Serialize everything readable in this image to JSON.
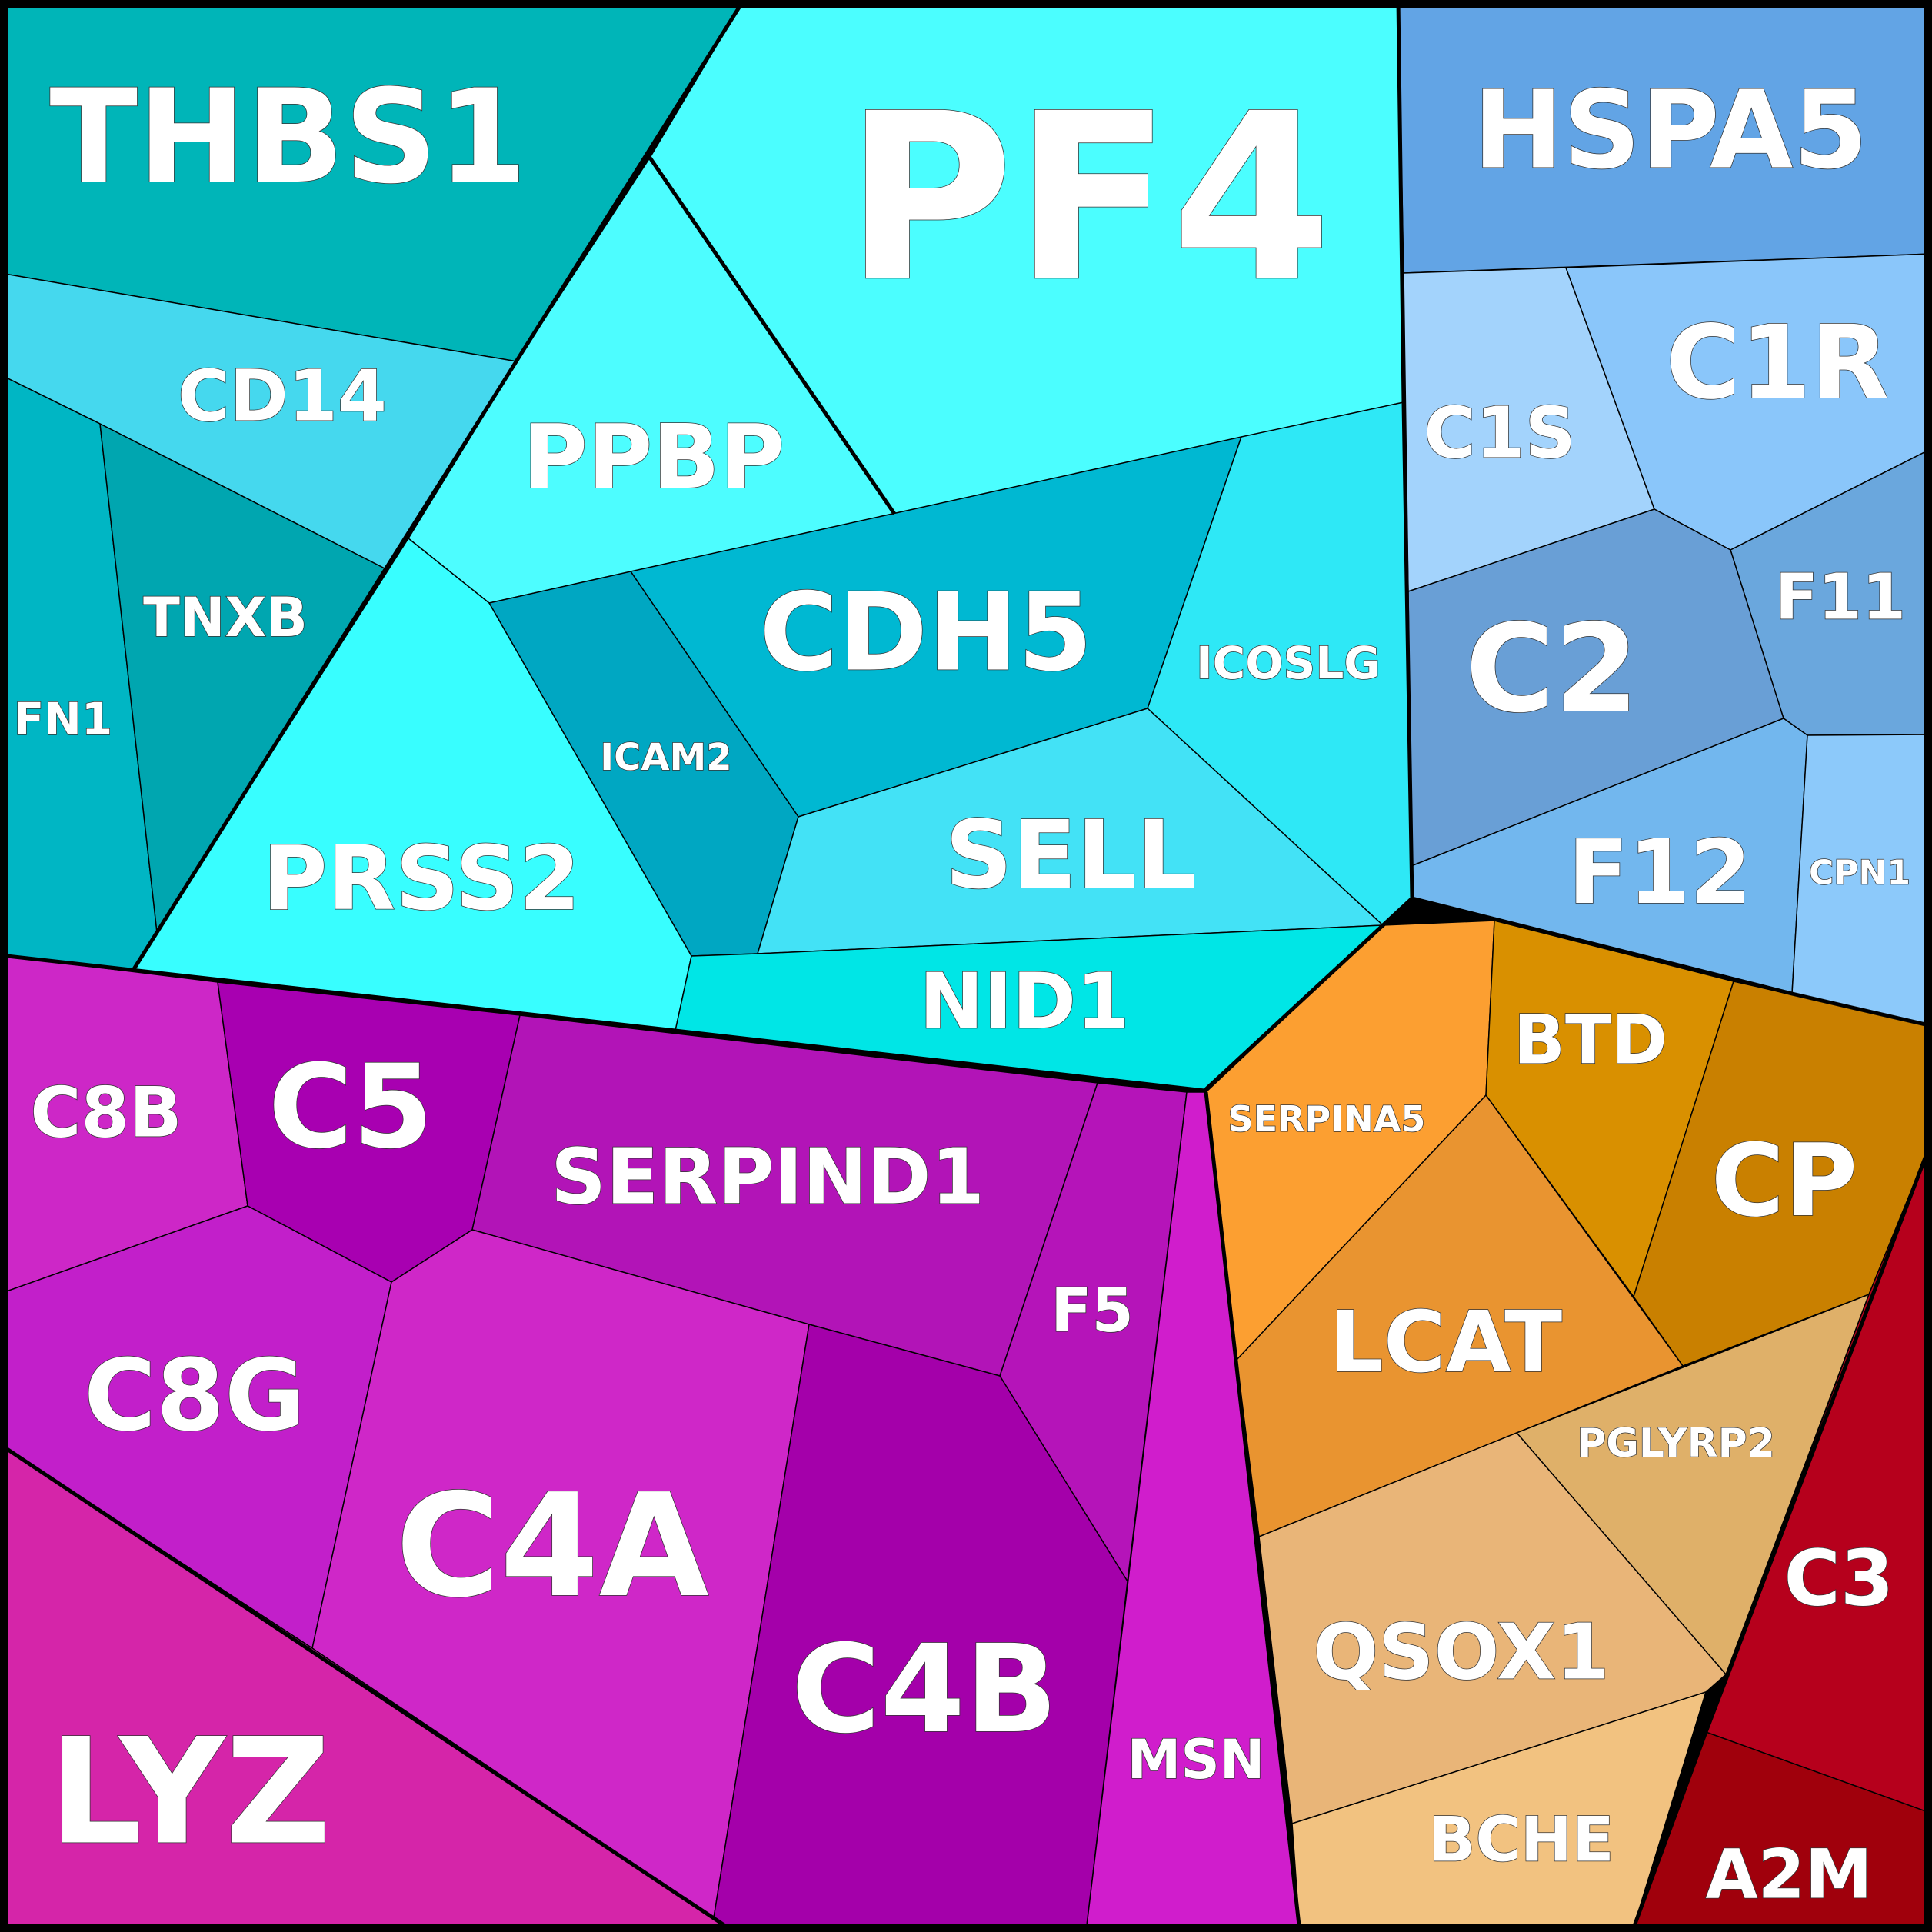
{
  "colors": {
    "cyan_group": [
      "#00b5b8",
      "#45d8ee",
      "#00b6c4",
      "#00a6b0",
      "#4dfdff",
      "#4bfeff",
      "#38feff",
      "#00b8d2",
      "#00a7c2",
      "#2ee8f6",
      "#43e2f6",
      "#00e6e6"
    ],
    "blue_group": [
      "#62a4e5",
      "#a3d3fc",
      "#8ac6fa",
      "#6aa7dd",
      "#699fd6",
      "#72b7ee",
      "#8cc9fa"
    ],
    "magenta_group": [
      "#cd27c7",
      "#a800b1",
      "#b214b7",
      "#c21fca",
      "#cf27c8",
      "#a400aa",
      "#b514b9",
      "#d01dcc",
      "#d525a9"
    ],
    "orange_group": [
      "#fc9f31",
      "#d99000",
      "#c98000",
      "#e99430",
      "#dfb069",
      "#e9b578",
      "#f2c280"
    ],
    "red_group": [
      "#b6001c",
      "#a0000c"
    ]
  },
  "cells": [
    {
      "id": "THBS1",
      "label": "THBS1",
      "group": "cyan",
      "color": "#00b5b8"
    },
    {
      "id": "PF4",
      "label": "PF4",
      "group": "cyan",
      "color": "#4bfeff"
    },
    {
      "id": "CD14",
      "label": "CD14",
      "group": "cyan",
      "color": "#45d8ee"
    },
    {
      "id": "PPBP",
      "label": "PPBP",
      "group": "cyan",
      "color": "#4dfdff"
    },
    {
      "id": "FN1",
      "label": "FN1",
      "group": "cyan",
      "color": "#00b6c4"
    },
    {
      "id": "TNXB",
      "label": "TNXB",
      "group": "cyan",
      "color": "#00a6b0"
    },
    {
      "id": "CDH5",
      "label": "CDH5",
      "group": "cyan",
      "color": "#00b8d2"
    },
    {
      "id": "ICOSLG",
      "label": "ICOSLG",
      "group": "cyan",
      "color": "#2ee8f6"
    },
    {
      "id": "ICAM2",
      "label": "ICAM2",
      "group": "cyan",
      "color": "#00a7c2"
    },
    {
      "id": "PRSS2",
      "label": "PRSS2",
      "group": "cyan",
      "color": "#38feff"
    },
    {
      "id": "SELL",
      "label": "SELL",
      "group": "cyan",
      "color": "#43e2f6"
    },
    {
      "id": "NID1",
      "label": "NID1",
      "group": "cyan",
      "color": "#00e6e6"
    },
    {
      "id": "HSPA5",
      "label": "HSPA5",
      "group": "blue",
      "color": "#62a4e5"
    },
    {
      "id": "C1S",
      "label": "C1S",
      "group": "blue",
      "color": "#a3d3fc"
    },
    {
      "id": "C1R",
      "label": "C1R",
      "group": "blue",
      "color": "#8ac6fa"
    },
    {
      "id": "F11",
      "label": "F11",
      "group": "blue",
      "color": "#6aa7dd"
    },
    {
      "id": "C2",
      "label": "C2",
      "group": "blue",
      "color": "#699fd6"
    },
    {
      "id": "F12",
      "label": "F12",
      "group": "blue",
      "color": "#72b7ee"
    },
    {
      "id": "CPN1",
      "label": "CPN1",
      "group": "blue",
      "color": "#8cc9fa"
    },
    {
      "id": "C8B",
      "label": "C8B",
      "group": "magenta",
      "color": "#cd27c7"
    },
    {
      "id": "C5",
      "label": "C5",
      "group": "magenta",
      "color": "#a800b1"
    },
    {
      "id": "SERPIND1",
      "label": "SERPIND1",
      "group": "magenta",
      "color": "#b214b7"
    },
    {
      "id": "F5",
      "label": "F5",
      "group": "magenta",
      "color": "#b514b9"
    },
    {
      "id": "C8G",
      "label": "C8G",
      "group": "magenta",
      "color": "#c21fca"
    },
    {
      "id": "C4A",
      "label": "C4A",
      "group": "magenta",
      "color": "#cf27c8"
    },
    {
      "id": "C4B",
      "label": "C4B",
      "group": "magenta",
      "color": "#a400aa"
    },
    {
      "id": "MSN",
      "label": "MSN",
      "group": "magenta",
      "color": "#d01dcc"
    },
    {
      "id": "LYZ",
      "label": "LYZ",
      "group": "magenta",
      "color": "#d525a9"
    },
    {
      "id": "SERPINA5",
      "label": "SERPINA5",
      "group": "orange",
      "color": "#fc9f31"
    },
    {
      "id": "BTD",
      "label": "BTD",
      "group": "orange",
      "color": "#d99000"
    },
    {
      "id": "CP",
      "label": "CP",
      "group": "orange",
      "color": "#c98000"
    },
    {
      "id": "LCAT",
      "label": "LCAT",
      "group": "orange",
      "color": "#e99430"
    },
    {
      "id": "PGLYRP2",
      "label": "PGLYRP2",
      "group": "orange",
      "color": "#dfb069"
    },
    {
      "id": "QSOX1",
      "label": "QSOX1",
      "group": "orange",
      "color": "#e9b578"
    },
    {
      "id": "BCHE",
      "label": "BCHE",
      "group": "orange",
      "color": "#f2c280"
    },
    {
      "id": "C3",
      "label": "C3",
      "group": "red",
      "color": "#b6001c"
    },
    {
      "id": "A2M",
      "label": "A2M",
      "group": "red",
      "color": "#a0000c"
    }
  ]
}
